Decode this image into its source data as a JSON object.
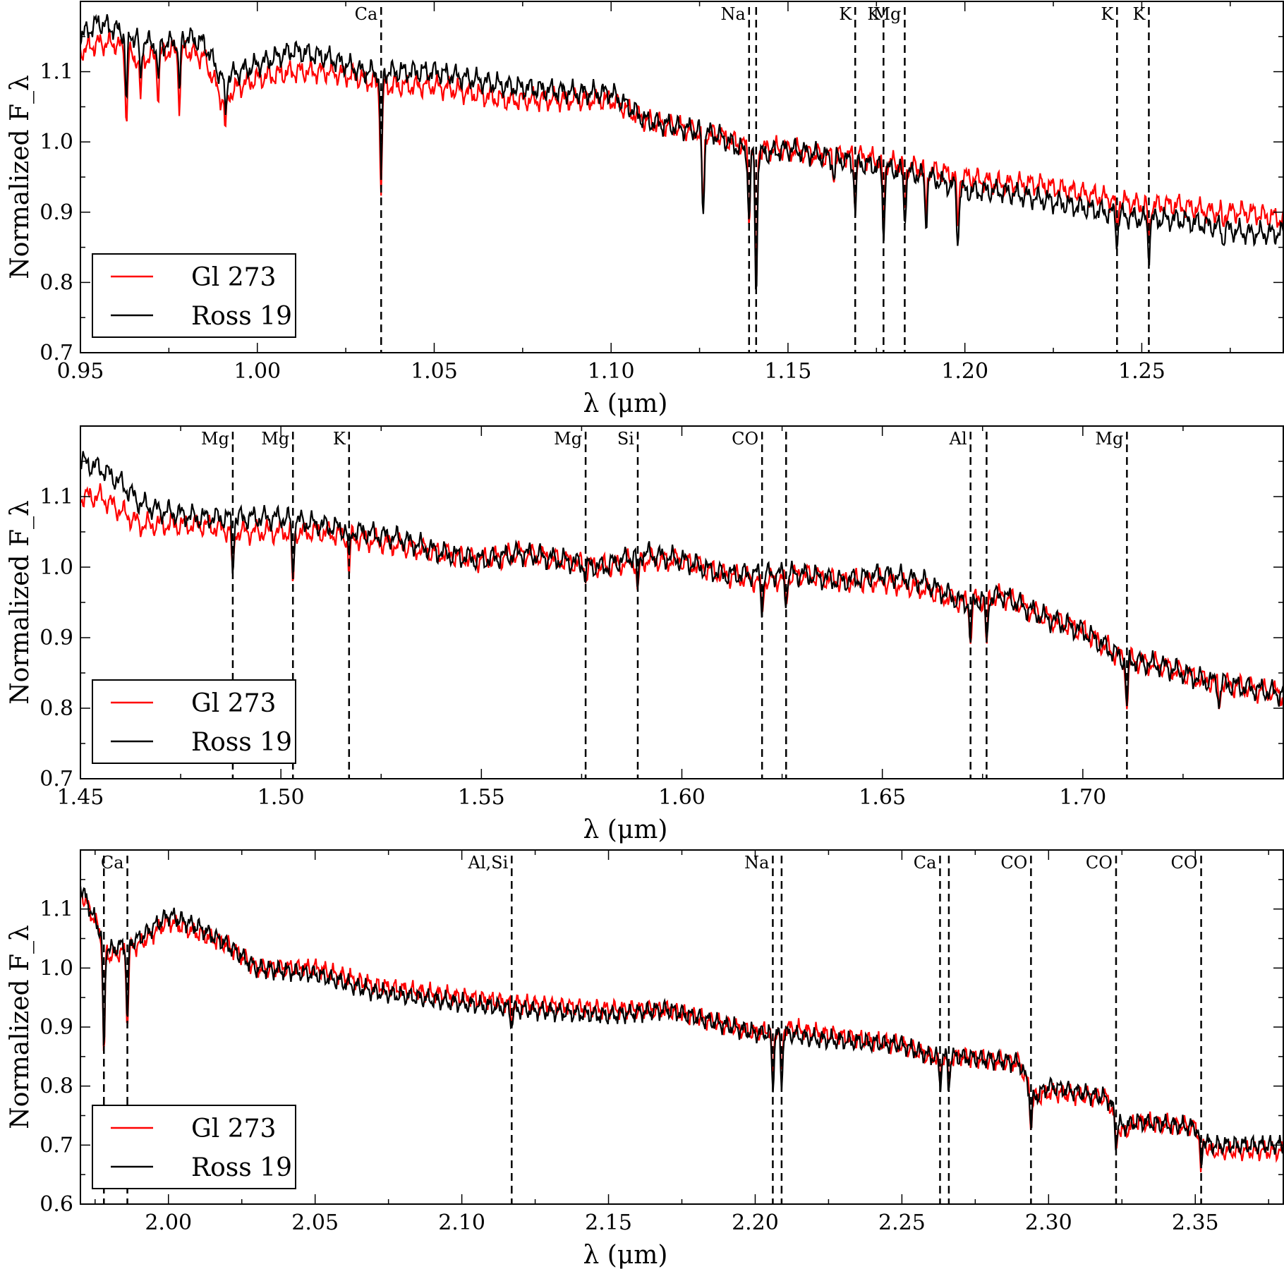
{
  "colors": {
    "gl273": "#ff0000",
    "ross19": "#000000",
    "axes": "#000000"
  },
  "legend": {
    "placement": "lower-left",
    "entries": [
      "Gl 273",
      "Ross 19"
    ]
  },
  "chart_data": [
    {
      "type": "line",
      "xlabel": "λ (μm)",
      "ylabel": "Normalized F_λ",
      "xlim": [
        0.95,
        1.29
      ],
      "ylim": [
        0.7,
        1.2
      ],
      "xticks": [
        "0.95",
        "1.00",
        "1.05",
        "1.10",
        "1.15",
        "1.20",
        "1.25"
      ],
      "yticks": [
        "0.7",
        "0.8",
        "0.9",
        "1.0",
        "1.1"
      ],
      "lines": [
        {
          "x": 1.035,
          "label": "Ca"
        },
        {
          "x": 1.139,
          "label": "Na"
        },
        {
          "x": 1.141,
          "label": ""
        },
        {
          "x": 1.169,
          "label": "K"
        },
        {
          "x": 1.177,
          "label": "K"
        },
        {
          "x": 1.183,
          "label": "Mg"
        },
        {
          "x": 1.243,
          "label": "K"
        },
        {
          "x": 1.252,
          "label": "K"
        }
      ],
      "series": [
        {
          "name": "Gl 273",
          "x": [
            0.95,
            0.955,
            0.96,
            0.965,
            0.97,
            0.975,
            0.98,
            0.985,
            0.99,
            0.995,
            1.0,
            1.01,
            1.02,
            1.03,
            1.035,
            1.05,
            1.07,
            1.09,
            1.1,
            1.11,
            1.12,
            1.13,
            1.14,
            1.15,
            1.16,
            1.17,
            1.18,
            1.19,
            1.2,
            1.21,
            1.22,
            1.23,
            1.24,
            1.25,
            1.26,
            1.27,
            1.28,
            1.29
          ],
          "y": [
            1.13,
            1.14,
            1.14,
            1.12,
            1.12,
            1.13,
            1.13,
            1.12,
            1.06,
            1.08,
            1.09,
            1.1,
            1.1,
            1.09,
            1.08,
            1.08,
            1.06,
            1.06,
            1.06,
            1.03,
            1.02,
            1.01,
            0.99,
            0.99,
            0.98,
            0.98,
            0.97,
            0.96,
            0.95,
            0.94,
            0.94,
            0.93,
            0.92,
            0.91,
            0.91,
            0.9,
            0.9,
            0.89
          ]
        },
        {
          "name": "Ross 19",
          "x": [
            0.95,
            0.955,
            0.96,
            0.965,
            0.97,
            0.975,
            0.98,
            0.985,
            0.99,
            0.995,
            1.0,
            1.01,
            1.02,
            1.03,
            1.035,
            1.05,
            1.07,
            1.09,
            1.1,
            1.11,
            1.12,
            1.13,
            1.14,
            1.15,
            1.16,
            1.17,
            1.18,
            1.19,
            1.2,
            1.21,
            1.22,
            1.23,
            1.24,
            1.25,
            1.26,
            1.27,
            1.28,
            1.29
          ],
          "y": [
            1.15,
            1.17,
            1.16,
            1.15,
            1.14,
            1.14,
            1.15,
            1.14,
            1.09,
            1.1,
            1.11,
            1.13,
            1.12,
            1.1,
            1.1,
            1.1,
            1.08,
            1.07,
            1.07,
            1.03,
            1.02,
            1.01,
            0.98,
            0.99,
            0.98,
            0.97,
            0.96,
            0.95,
            0.93,
            0.93,
            0.92,
            0.91,
            0.9,
            0.89,
            0.89,
            0.88,
            0.87,
            0.87
          ]
        }
      ],
      "absorption": [
        {
          "x": 0.963,
          "depth": 0.1
        },
        {
          "x": 0.967,
          "depth": 0.06
        },
        {
          "x": 0.972,
          "depth": 0.06
        },
        {
          "x": 0.978,
          "depth": 0.08
        },
        {
          "x": 0.991,
          "depth": 0.05
        },
        {
          "x": 1.035,
          "depth": 0.15
        },
        {
          "x": 1.126,
          "depth": 0.12
        },
        {
          "x": 1.139,
          "depth": 0.1
        },
        {
          "x": 1.141,
          "depth": 0.2
        },
        {
          "x": 1.163,
          "depth": 0.03
        },
        {
          "x": 1.169,
          "depth": 0.07
        },
        {
          "x": 1.177,
          "depth": 0.1
        },
        {
          "x": 1.183,
          "depth": 0.07
        },
        {
          "x": 1.189,
          "depth": 0.07
        },
        {
          "x": 1.198,
          "depth": 0.08
        },
        {
          "x": 1.243,
          "depth": 0.04
        },
        {
          "x": 1.252,
          "depth": 0.05
        },
        {
          "x": 1.273,
          "depth": 0.02
        }
      ]
    },
    {
      "type": "line",
      "xlabel": "λ (μm)",
      "ylabel": "Normalized F_λ",
      "xlim": [
        1.45,
        1.75
      ],
      "ylim": [
        0.7,
        1.2
      ],
      "xticks": [
        "1.45",
        "1.50",
        "1.55",
        "1.60",
        "1.65",
        "1.70"
      ],
      "yticks": [
        "0.7",
        "0.8",
        "0.9",
        "1.0",
        "1.1"
      ],
      "lines": [
        {
          "x": 1.488,
          "label": "Mg"
        },
        {
          "x": 1.503,
          "label": "Mg"
        },
        {
          "x": 1.517,
          "label": "K"
        },
        {
          "x": 1.576,
          "label": "Mg"
        },
        {
          "x": 1.589,
          "label": "Si"
        },
        {
          "x": 1.62,
          "label": "CO"
        },
        {
          "x": 1.626,
          "label": ""
        },
        {
          "x": 1.672,
          "label": "Al"
        },
        {
          "x": 1.676,
          "label": ""
        },
        {
          "x": 1.711,
          "label": "Mg"
        }
      ],
      "series": [
        {
          "name": "Gl 273",
          "x": [
            1.45,
            1.455,
            1.46,
            1.465,
            1.47,
            1.48,
            1.49,
            1.5,
            1.51,
            1.52,
            1.53,
            1.54,
            1.55,
            1.56,
            1.57,
            1.58,
            1.59,
            1.6,
            1.61,
            1.62,
            1.63,
            1.64,
            1.65,
            1.66,
            1.67,
            1.68,
            1.69,
            1.7,
            1.71,
            1.72,
            1.73,
            1.74,
            1.75
          ],
          "y": [
            1.1,
            1.1,
            1.08,
            1.06,
            1.06,
            1.06,
            1.05,
            1.05,
            1.05,
            1.04,
            1.03,
            1.02,
            1.01,
            1.02,
            1.01,
            1.0,
            1.01,
            1.01,
            0.99,
            0.98,
            0.99,
            0.98,
            0.98,
            0.97,
            0.95,
            0.96,
            0.93,
            0.91,
            0.87,
            0.86,
            0.84,
            0.83,
            0.82
          ]
        },
        {
          "name": "Ross 19",
          "x": [
            1.45,
            1.455,
            1.46,
            1.465,
            1.47,
            1.48,
            1.49,
            1.5,
            1.51,
            1.52,
            1.53,
            1.54,
            1.55,
            1.56,
            1.57,
            1.58,
            1.59,
            1.6,
            1.61,
            1.62,
            1.63,
            1.64,
            1.65,
            1.66,
            1.67,
            1.68,
            1.69,
            1.7,
            1.71,
            1.72,
            1.73,
            1.74,
            1.75
          ],
          "y": [
            1.15,
            1.14,
            1.12,
            1.09,
            1.08,
            1.07,
            1.07,
            1.07,
            1.06,
            1.05,
            1.04,
            1.02,
            1.01,
            1.02,
            1.01,
            1.0,
            1.02,
            1.01,
            0.99,
            0.99,
            0.99,
            0.98,
            0.99,
            0.98,
            0.95,
            0.96,
            0.93,
            0.91,
            0.87,
            0.86,
            0.84,
            0.83,
            0.82
          ]
        }
      ],
      "absorption": [
        {
          "x": 1.488,
          "depth": 0.07
        },
        {
          "x": 1.503,
          "depth": 0.08
        },
        {
          "x": 1.517,
          "depth": 0.05
        },
        {
          "x": 1.576,
          "depth": 0.02
        },
        {
          "x": 1.589,
          "depth": 0.05
        },
        {
          "x": 1.62,
          "depth": 0.05
        },
        {
          "x": 1.626,
          "depth": 0.04
        },
        {
          "x": 1.672,
          "depth": 0.06
        },
        {
          "x": 1.676,
          "depth": 0.07
        },
        {
          "x": 1.711,
          "depth": 0.07
        },
        {
          "x": 1.734,
          "depth": 0.03
        }
      ]
    },
    {
      "type": "line",
      "xlabel": "λ (μm)",
      "ylabel": "Normalized F_λ",
      "xlim": [
        1.97,
        2.38
      ],
      "ylim": [
        0.6,
        1.2
      ],
      "xticks": [
        "2.00",
        "2.05",
        "2.10",
        "2.15",
        "2.20",
        "2.25",
        "2.30",
        "2.35"
      ],
      "yticks": [
        "0.6",
        "0.7",
        "0.8",
        "0.9",
        "1.0",
        "1.1"
      ],
      "lines": [
        {
          "x": 1.978,
          "label": ""
        },
        {
          "x": 1.986,
          "label": "Ca"
        },
        {
          "x": 2.117,
          "label": "Al,Si"
        },
        {
          "x": 2.206,
          "label": "Na"
        },
        {
          "x": 2.209,
          "label": ""
        },
        {
          "x": 2.263,
          "label": "Ca"
        },
        {
          "x": 2.266,
          "label": ""
        },
        {
          "x": 2.294,
          "label": "CO"
        },
        {
          "x": 2.323,
          "label": "CO"
        },
        {
          "x": 2.352,
          "label": "CO"
        }
      ],
      "series": [
        {
          "name": "Gl 273",
          "x": [
            1.97,
            1.975,
            1.98,
            1.985,
            1.99,
            2.0,
            2.01,
            2.02,
            2.03,
            2.05,
            2.07,
            2.1,
            2.12,
            2.15,
            2.17,
            2.2,
            2.21,
            2.22,
            2.25,
            2.26,
            2.27,
            2.29,
            2.295,
            2.3,
            2.32,
            2.325,
            2.33,
            2.35,
            2.355,
            2.38
          ],
          "y": [
            1.13,
            1.08,
            1.02,
            1.03,
            1.04,
            1.08,
            1.06,
            1.04,
            1.0,
            1.0,
            0.97,
            0.95,
            0.94,
            0.93,
            0.93,
            0.89,
            0.9,
            0.89,
            0.87,
            0.85,
            0.85,
            0.84,
            0.78,
            0.79,
            0.78,
            0.72,
            0.74,
            0.73,
            0.69,
            0.69
          ]
        },
        {
          "name": "Ross 19",
          "x": [
            1.97,
            1.975,
            1.98,
            1.985,
            1.99,
            2.0,
            2.01,
            2.02,
            2.03,
            2.05,
            2.07,
            2.1,
            2.12,
            2.15,
            2.17,
            2.2,
            2.21,
            2.22,
            2.25,
            2.26,
            2.27,
            2.29,
            2.295,
            2.3,
            2.32,
            2.325,
            2.33,
            2.35,
            2.355,
            2.38
          ],
          "y": [
            1.14,
            1.08,
            1.03,
            1.04,
            1.05,
            1.09,
            1.07,
            1.04,
            1.0,
            0.99,
            0.96,
            0.94,
            0.93,
            0.92,
            0.93,
            0.89,
            0.89,
            0.88,
            0.87,
            0.85,
            0.85,
            0.84,
            0.78,
            0.8,
            0.78,
            0.73,
            0.74,
            0.73,
            0.7,
            0.7
          ]
        }
      ],
      "absorption": [
        {
          "x": 1.978,
          "depth": 0.2
        },
        {
          "x": 1.986,
          "depth": 0.13
        },
        {
          "x": 2.117,
          "depth": 0.03
        },
        {
          "x": 2.206,
          "depth": 0.1
        },
        {
          "x": 2.209,
          "depth": 0.09
        },
        {
          "x": 2.263,
          "depth": 0.05
        },
        {
          "x": 2.266,
          "depth": 0.05
        },
        {
          "x": 2.294,
          "depth": 0.06
        },
        {
          "x": 2.323,
          "depth": 0.05
        },
        {
          "x": 2.352,
          "depth": 0.06
        }
      ]
    }
  ]
}
